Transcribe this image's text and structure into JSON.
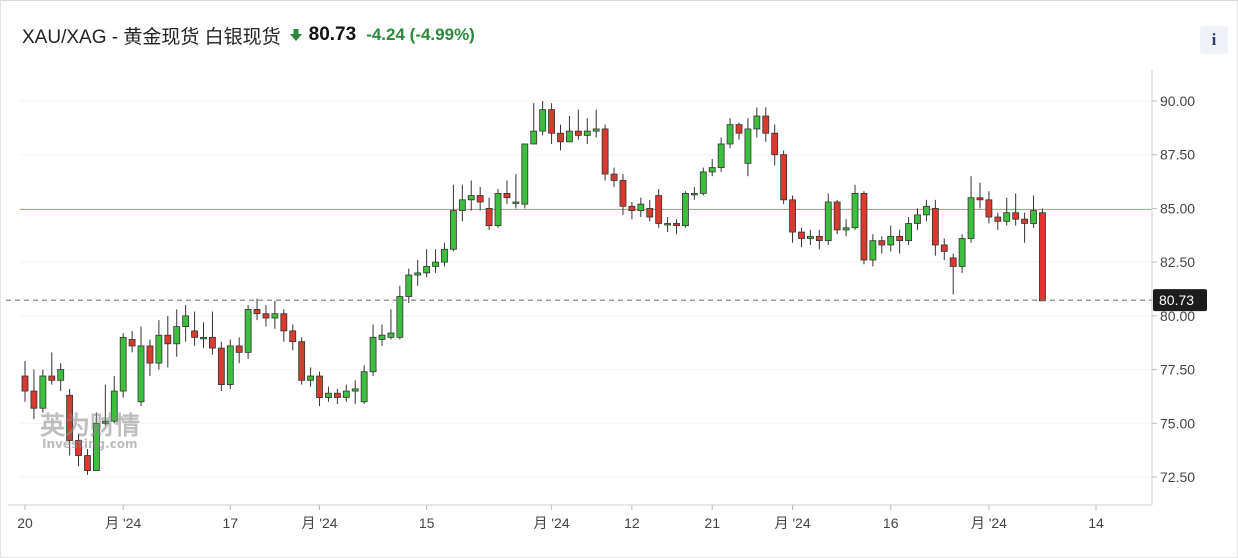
{
  "header": {
    "title": "XAU/XAG - 黄金现货 白银现货",
    "price": "80.73",
    "change": "-4.24 (-4.99%)",
    "arrow_icon": "arrow-down-icon",
    "info_label": "i"
  },
  "watermark": {
    "brand": "英为财情",
    "sub": "Investing.com"
  },
  "colors": {
    "up": "#3cbf3c",
    "down": "#d83a2e",
    "hline": "#e88a8a",
    "dashed": "#777777",
    "price_label_bg": "#1c1c1c"
  },
  "chart_data": {
    "type": "candlestick",
    "ylim": [
      71.0,
      91.0
    ],
    "y_ticks": [
      "90.00",
      "87.50",
      "85.00",
      "82.50",
      "80.00",
      "77.50",
      "75.00",
      "72.50"
    ],
    "y_tick_values": [
      90,
      87.5,
      85,
      82.5,
      80,
      77.5,
      75,
      72.5
    ],
    "x_ticks": [
      {
        "label": "20",
        "i": 0
      },
      {
        "label": "月 '24",
        "i": 11
      },
      {
        "label": "17",
        "i": 23
      },
      {
        "label": "月 '24",
        "i": 33
      },
      {
        "label": "15",
        "i": 45
      },
      {
        "label": "月 '24",
        "i": 59
      },
      {
        "label": "12",
        "i": 68
      },
      {
        "label": "21",
        "i": 77
      },
      {
        "label": "月 '24",
        "i": 86
      },
      {
        "label": "16",
        "i": 97
      },
      {
        "label": "月 '24",
        "i": 108
      },
      {
        "label": "14",
        "i": 120
      }
    ],
    "horizontal_line": 84.95,
    "last_price": 80.73,
    "last_price_label": "80.73",
    "candles": [
      [
        77.2,
        76.5,
        77.9,
        76.0
      ],
      [
        76.5,
        75.7,
        77.5,
        75.2
      ],
      [
        75.7,
        77.2,
        77.5,
        75.5
      ],
      [
        77.2,
        77.0,
        78.3,
        76.8
      ],
      [
        77.0,
        77.5,
        77.8,
        76.5
      ],
      [
        76.3,
        74.2,
        76.6,
        73.5
      ],
      [
        74.2,
        73.5,
        74.5,
        73.0
      ],
      [
        73.5,
        72.8,
        73.8,
        72.6
      ],
      [
        72.8,
        75.0,
        75.5,
        72.8
      ],
      [
        75.0,
        75.1,
        76.8,
        74.9
      ],
      [
        75.1,
        76.5,
        77.2,
        75.0
      ],
      [
        76.5,
        79.0,
        79.2,
        76.2
      ],
      [
        78.9,
        78.6,
        79.3,
        78.3
      ],
      [
        76.0,
        78.6,
        79.5,
        75.8
      ],
      [
        78.6,
        77.8,
        78.9,
        77.2
      ],
      [
        77.8,
        79.1,
        79.8,
        77.5
      ],
      [
        79.1,
        78.7,
        80.0,
        77.6
      ],
      [
        78.7,
        79.5,
        80.3,
        78.1
      ],
      [
        79.5,
        80.0,
        80.5,
        78.8
      ],
      [
        79.3,
        79.0,
        80.2,
        78.6
      ],
      [
        79.0,
        79.0,
        79.7,
        78.5
      ],
      [
        79.0,
        78.5,
        80.2,
        78.2
      ],
      [
        78.5,
        76.8,
        78.8,
        76.5
      ],
      [
        76.8,
        78.6,
        78.9,
        76.6
      ],
      [
        78.6,
        78.3,
        79.0,
        77.8
      ],
      [
        78.3,
        80.3,
        80.5,
        78.0
      ],
      [
        80.3,
        80.1,
        80.8,
        79.8
      ],
      [
        80.1,
        79.9,
        80.5,
        79.5
      ],
      [
        79.9,
        80.1,
        80.7,
        79.4
      ],
      [
        80.1,
        79.3,
        80.3,
        78.8
      ],
      [
        79.3,
        78.8,
        79.6,
        78.4
      ],
      [
        78.8,
        77.0,
        79.0,
        76.8
      ],
      [
        77.0,
        77.2,
        77.6,
        76.7
      ],
      [
        77.2,
        76.2,
        77.4,
        75.8
      ],
      [
        76.2,
        76.4,
        76.7,
        76.0
      ],
      [
        76.4,
        76.2,
        76.6,
        75.9
      ],
      [
        76.2,
        76.5,
        76.8,
        76.0
      ],
      [
        76.5,
        76.6,
        77.0,
        75.9
      ],
      [
        76.0,
        77.4,
        77.7,
        75.9
      ],
      [
        77.4,
        79.0,
        79.6,
        77.2
      ],
      [
        78.9,
        79.1,
        79.6,
        78.6
      ],
      [
        79.0,
        79.2,
        80.3,
        78.9
      ],
      [
        79.0,
        80.9,
        81.4,
        78.9
      ],
      [
        80.9,
        81.9,
        82.2,
        80.6
      ],
      [
        81.9,
        82.0,
        82.6,
        81.4
      ],
      [
        82.0,
        82.3,
        83.1,
        81.8
      ],
      [
        82.3,
        82.5,
        83.1,
        82.0
      ],
      [
        82.5,
        83.1,
        83.4,
        82.3
      ],
      [
        83.1,
        84.9,
        86.1,
        83.0
      ],
      [
        84.9,
        85.4,
        86.1,
        84.4
      ],
      [
        85.4,
        85.6,
        86.3,
        84.9
      ],
      [
        85.6,
        85.3,
        86.0,
        84.9
      ],
      [
        85.0,
        84.2,
        85.5,
        84.0
      ],
      [
        84.2,
        85.7,
        85.9,
        84.1
      ],
      [
        85.7,
        85.5,
        86.3,
        85.2
      ],
      [
        85.3,
        85.3,
        86.6,
        85.0
      ],
      [
        85.2,
        88.0,
        88.0,
        85.0
      ],
      [
        88.0,
        88.6,
        89.9,
        88.0
      ],
      [
        88.6,
        89.6,
        90.0,
        88.4
      ],
      [
        89.6,
        88.5,
        89.9,
        88.0
      ],
      [
        88.5,
        88.1,
        88.9,
        87.7
      ],
      [
        88.1,
        88.6,
        89.3,
        88.3
      ],
      [
        88.6,
        88.4,
        89.6,
        88.2
      ],
      [
        88.4,
        88.6,
        89.2,
        88.0
      ],
      [
        88.6,
        88.7,
        89.6,
        88.3
      ],
      [
        88.7,
        86.6,
        88.9,
        86.3
      ],
      [
        86.6,
        86.3,
        86.9,
        86.0
      ],
      [
        86.3,
        85.1,
        86.6,
        84.7
      ],
      [
        85.1,
        84.9,
        85.3,
        84.5
      ],
      [
        84.9,
        85.2,
        85.5,
        84.6
      ],
      [
        85.0,
        84.6,
        85.4,
        84.4
      ],
      [
        85.6,
        84.3,
        85.9,
        84.1
      ],
      [
        84.3,
        84.3,
        84.6,
        83.9
      ],
      [
        84.3,
        84.2,
        84.5,
        83.8
      ],
      [
        84.2,
        85.7,
        85.8,
        84.1
      ],
      [
        85.7,
        85.7,
        86.0,
        85.4
      ],
      [
        85.7,
        86.7,
        86.9,
        85.6
      ],
      [
        86.7,
        86.9,
        87.3,
        86.5
      ],
      [
        86.9,
        88.0,
        88.3,
        86.7
      ],
      [
        88.0,
        88.9,
        89.2,
        87.8
      ],
      [
        88.9,
        88.5,
        89.0,
        88.2
      ],
      [
        87.1,
        88.7,
        89.2,
        86.5
      ],
      [
        88.7,
        89.3,
        89.7,
        88.3
      ],
      [
        89.3,
        88.5,
        89.7,
        88.1
      ],
      [
        88.5,
        87.5,
        88.9,
        87.0
      ],
      [
        87.5,
        85.4,
        87.7,
        85.2
      ],
      [
        85.4,
        83.9,
        85.6,
        83.4
      ],
      [
        83.9,
        83.6,
        84.1,
        83.2
      ],
      [
        83.6,
        83.7,
        84.0,
        83.3
      ],
      [
        83.7,
        83.5,
        84.0,
        83.1
      ],
      [
        83.5,
        85.3,
        85.7,
        83.3
      ],
      [
        85.3,
        84.0,
        85.4,
        83.8
      ],
      [
        84.0,
        84.1,
        84.5,
        83.7
      ],
      [
        84.1,
        85.7,
        86.1,
        84.0
      ],
      [
        85.7,
        82.6,
        85.8,
        82.4
      ],
      [
        82.6,
        83.5,
        83.8,
        82.3
      ],
      [
        83.5,
        83.3,
        83.7,
        82.9
      ],
      [
        83.3,
        83.7,
        84.2,
        83.0
      ],
      [
        83.7,
        83.5,
        84.0,
        82.9
      ],
      [
        83.5,
        84.3,
        84.6,
        83.3
      ],
      [
        84.3,
        84.7,
        85.0,
        84.0
      ],
      [
        84.7,
        85.1,
        85.4,
        84.4
      ],
      [
        85.0,
        83.3,
        85.4,
        82.8
      ],
      [
        83.3,
        83.0,
        83.6,
        82.6
      ],
      [
        82.7,
        82.3,
        82.9,
        81.0
      ],
      [
        82.3,
        83.6,
        83.8,
        82.0
      ],
      [
        83.6,
        85.5,
        86.5,
        83.4
      ],
      [
        85.5,
        85.4,
        86.2,
        85.0
      ],
      [
        85.4,
        84.6,
        85.8,
        84.3
      ],
      [
        84.6,
        84.4,
        84.8,
        84.0
      ],
      [
        84.4,
        84.8,
        85.5,
        84.2
      ],
      [
        84.8,
        84.5,
        85.7,
        84.2
      ],
      [
        84.5,
        84.3,
        84.8,
        83.4
      ],
      [
        84.3,
        84.9,
        85.6,
        84.1
      ],
      [
        84.8,
        80.7,
        85.0,
        80.7
      ]
    ]
  }
}
